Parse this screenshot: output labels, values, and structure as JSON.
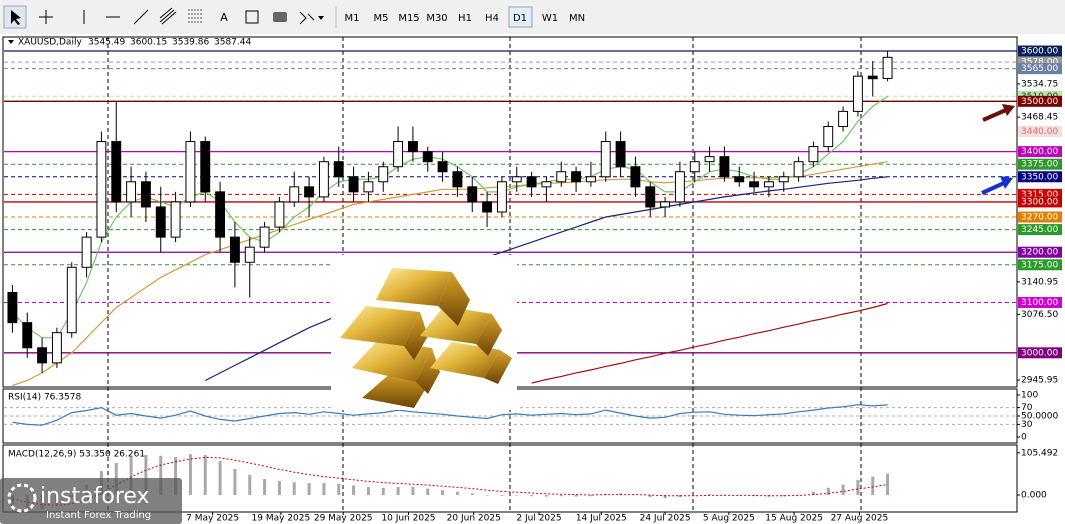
{
  "toolbar": {
    "text_tool": "A",
    "timeframes": [
      "M1",
      "M5",
      "M15",
      "M30",
      "H1",
      "H4",
      "D1",
      "W1",
      "MN"
    ],
    "selected": "D1"
  },
  "watermark": {
    "name": "instaforex",
    "tagline": "Instant Forex Trading"
  },
  "chart_data": [
    {
      "type": "candlestick",
      "title": "XAUUSD,Daily",
      "open": [
        3120,
        3060,
        3010,
        2980,
        3040,
        3170,
        3230,
        3420,
        3300,
        3340,
        3290,
        3230,
        3300,
        3420,
        3320,
        3230,
        3180,
        3210,
        3250,
        3300,
        3330,
        3310,
        3380,
        3350,
        3320,
        3340,
        3370,
        3420,
        3400,
        3380,
        3360,
        3330,
        3300,
        3280,
        3340,
        3350,
        3330,
        3340,
        3360,
        3340,
        3350,
        3420,
        3370,
        3330,
        3290,
        3300,
        3360,
        3380,
        3390,
        3350,
        3340,
        3330,
        3340,
        3350,
        3380,
        3410,
        3450,
        3480,
        3550,
        3545.49
      ],
      "high": [
        3135,
        3080,
        3030,
        3050,
        3180,
        3240,
        3440,
        3500,
        3370,
        3360,
        3330,
        3320,
        3440,
        3430,
        3340,
        3260,
        3230,
        3260,
        3310,
        3360,
        3350,
        3390,
        3410,
        3370,
        3360,
        3380,
        3450,
        3450,
        3410,
        3400,
        3370,
        3350,
        3320,
        3350,
        3370,
        3360,
        3350,
        3380,
        3370,
        3380,
        3440,
        3440,
        3390,
        3340,
        3310,
        3380,
        3400,
        3410,
        3410,
        3370,
        3360,
        3350,
        3360,
        3390,
        3420,
        3460,
        3490,
        3560,
        3580,
        3600.15
      ],
      "low": [
        3040,
        2990,
        2960,
        2970,
        3030,
        3150,
        3220,
        3280,
        3270,
        3260,
        3200,
        3220,
        3290,
        3300,
        3200,
        3130,
        3110,
        3200,
        3240,
        3290,
        3270,
        3300,
        3330,
        3300,
        3300,
        3320,
        3360,
        3380,
        3360,
        3340,
        3310,
        3280,
        3250,
        3270,
        3320,
        3310,
        3300,
        3330,
        3320,
        3330,
        3340,
        3350,
        3310,
        3270,
        3270,
        3290,
        3340,
        3360,
        3340,
        3330,
        3320,
        3310,
        3320,
        3340,
        3370,
        3400,
        3440,
        3470,
        3510,
        3539.86
      ],
      "close": [
        3060,
        3010,
        2980,
        3040,
        3170,
        3230,
        3420,
        3300,
        3340,
        3290,
        3230,
        3300,
        3420,
        3320,
        3230,
        3180,
        3210,
        3250,
        3300,
        3330,
        3310,
        3380,
        3350,
        3320,
        3340,
        3370,
        3420,
        3400,
        3380,
        3360,
        3330,
        3300,
        3280,
        3340,
        3350,
        3330,
        3340,
        3360,
        3340,
        3350,
        3420,
        3370,
        3330,
        3290,
        3300,
        3360,
        3380,
        3390,
        3350,
        3340,
        3330,
        3340,
        3350,
        3380,
        3410,
        3450,
        3480,
        3550,
        3545,
        3587.44
      ],
      "lines": [
        {
          "color": "#6acb5e",
          "values": [
            3080,
            3050,
            3030,
            3030,
            3080,
            3140,
            3220,
            3270,
            3300,
            3310,
            3300,
            3290,
            3310,
            3320,
            3300,
            3260,
            3230,
            3220,
            3240,
            3270,
            3290,
            3320,
            3340,
            3345,
            3345,
            3350,
            3370,
            3385,
            3390,
            3385,
            3370,
            3350,
            3320,
            3320,
            3330,
            3335,
            3340,
            3345,
            3345,
            3350,
            3365,
            3370,
            3365,
            3340,
            3320,
            3320,
            3340,
            3360,
            3365,
            3360,
            3350,
            3345,
            3345,
            3355,
            3370,
            3395,
            3420,
            3460,
            3490,
            3510
          ]
        },
        {
          "color": "#d49a3a",
          "values": [
            2935,
            2945,
            2960,
            2980,
            3000,
            3030,
            3060,
            3090,
            3110,
            3130,
            3150,
            3165,
            3180,
            3195,
            3205,
            3215,
            3225,
            3235,
            3245,
            3255,
            3265,
            3275,
            3285,
            3295,
            3300,
            3305,
            3310,
            3315,
            3320,
            3325,
            3325,
            3325,
            3328,
            3330,
            3332,
            3335,
            3337,
            3338,
            3340,
            3342,
            3344,
            3345,
            3345,
            3340,
            3338,
            3340,
            3342,
            3345,
            3347,
            3348,
            3348,
            3348,
            3349,
            3350,
            3355,
            3360,
            3365,
            3370,
            3375,
            3380
          ]
        },
        {
          "color": "#1a237e",
          "values": [
            null,
            null,
            null,
            null,
            null,
            null,
            null,
            null,
            null,
            null,
            null,
            null,
            null,
            2945,
            2960,
            2975,
            2990,
            3005,
            3020,
            3035,
            3050,
            3062,
            3075,
            3088,
            3100,
            3112,
            3125,
            3138,
            3150,
            3160,
            3170,
            3180,
            3190,
            3200,
            3210,
            3220,
            3230,
            3240,
            3250,
            3260,
            3270,
            3275,
            3280,
            3285,
            3290,
            3295,
            3300,
            3305,
            3310,
            3314,
            3318,
            3322,
            3325,
            3329,
            3333,
            3337,
            3340,
            3343,
            3347,
            3350
          ]
        },
        {
          "color": "#a01010",
          "values": [
            null,
            null,
            null,
            null,
            null,
            null,
            null,
            null,
            null,
            null,
            null,
            null,
            null,
            null,
            null,
            null,
            null,
            null,
            null,
            null,
            null,
            null,
            null,
            null,
            null,
            null,
            null,
            null,
            null,
            null,
            null,
            null,
            null,
            null,
            null,
            2940,
            2947,
            2953,
            2960,
            2966,
            2973,
            2979,
            2986,
            2992,
            2999,
            3005,
            3012,
            3018,
            3025,
            3031,
            3038,
            3044,
            3051,
            3057,
            3064,
            3070,
            3077,
            3083,
            3090,
            3098
          ]
        }
      ],
      "levels": [
        {
          "value": 3600,
          "label": "3600.00",
          "color": "#0a1f5c",
          "text_color": "#ffffff",
          "line": "solid"
        },
        {
          "value": 3578,
          "label": "3578.00",
          "color": "#9a9a9a",
          "text_color": "#ffffff",
          "line": "dashed"
        },
        {
          "value": 3565,
          "label": "3565.00",
          "color": "#6b7fa8",
          "text_color": "#ffffff",
          "line": "dashed"
        },
        {
          "value": 3510,
          "label": "3510.00",
          "color": "#b8e6a8",
          "text_color": "#333333",
          "line": "dashed"
        },
        {
          "value": 3500,
          "label": "3500.00",
          "color": "#7a0000",
          "text_color": "#ffffff",
          "line": "solid"
        },
        {
          "value": 3440,
          "label": "3440.00",
          "color": "#f3dede",
          "text_color": "#e07070",
          "line": "none"
        },
        {
          "value": 3400,
          "label": "3400.00",
          "color": "#c000c0",
          "text_color": "#ffffff",
          "line": "solid"
        },
        {
          "value": 3375,
          "label": "3375.00",
          "color": "#2a9a2a",
          "text_color": "#ffffff",
          "line": "dashed"
        },
        {
          "value": 3350,
          "label": "3350.00",
          "color": "#000080",
          "text_color": "#ffffff",
          "line": "dashed"
        },
        {
          "value": 3315,
          "label": "3315.00",
          "color": "#d00000",
          "text_color": "#ffffff",
          "line": "dashed"
        },
        {
          "value": 3300,
          "label": "3300.00",
          "color": "#c00000",
          "text_color": "#ffffff",
          "line": "solid"
        },
        {
          "value": 3270,
          "label": "3270.00",
          "color": "#e08000",
          "text_color": "#ffffff",
          "line": "dashed"
        },
        {
          "value": 3245,
          "label": "3245.00",
          "color": "#2a9a2a",
          "text_color": "#ffffff",
          "line": "dashed"
        },
        {
          "value": 3200,
          "label": "3200.00",
          "color": "#8000a0",
          "text_color": "#ffffff",
          "line": "solid"
        },
        {
          "value": 3175,
          "label": "3175.00",
          "color": "#2a9a2a",
          "text_color": "#ffffff",
          "line": "dashed"
        },
        {
          "value": 3100,
          "label": "3100.00",
          "color": "#d000d0",
          "text_color": "#ffffff",
          "line": "dashed"
        },
        {
          "value": 3000,
          "label": "3000.00",
          "color": "#800080",
          "text_color": "#ffffff",
          "line": "solid"
        }
      ],
      "ylim": [
        2934,
        3610
      ],
      "yticks": [
        3534.75,
        3468.45,
        3140.95,
        {
          "value": 3076.5,
          "label": "3076.50"
        },
        2945.95
      ],
      "xlim": [
        0,
        60
      ],
      "xticks": [
        {
          "value": 14,
          "label": "7 May 2025"
        },
        {
          "value": 18.6,
          "label": "19 May 2025"
        },
        {
          "value": 22.8,
          "label": "29 May 2025"
        },
        {
          "value": 27.2,
          "label": "10 Jun 2025"
        },
        {
          "value": 31.6,
          "label": "20 Jun 2025"
        },
        {
          "value": 36,
          "label": "2 Jul 2025"
        },
        {
          "value": 40.2,
          "label": "14 Jul 2025"
        },
        {
          "value": 44.5,
          "label": "24 Jul 2025"
        },
        {
          "value": 48.8,
          "label": "5 Aug 2025"
        },
        {
          "value": 53.2,
          "label": "15 Aug 2025"
        },
        {
          "value": 57.6,
          "label": "27 Aug 2025"
        }
      ]
    },
    {
      "type": "line",
      "title": "RSI(14) 76.3578",
      "color": "#3a7bbf",
      "values": [
        35,
        30,
        28,
        40,
        58,
        63,
        70,
        52,
        56,
        50,
        45,
        52,
        62,
        50,
        42,
        38,
        44,
        50,
        56,
        58,
        54,
        60,
        56,
        52,
        55,
        58,
        64,
        60,
        57,
        54,
        50,
        47,
        44,
        53,
        55,
        52,
        54,
        56,
        53,
        55,
        64,
        57,
        50,
        45,
        47,
        56,
        59,
        60,
        54,
        52,
        51,
        53,
        55,
        60,
        64,
        69,
        72,
        77,
        74,
        76.3578
      ],
      "ylim": [
        0,
        100
      ],
      "yticks": [
        100,
        70,
        {
          "value": 50,
          "label": "50.0000"
        },
        30,
        0
      ],
      "grid": true
    },
    {
      "type": "bar",
      "title": "MACD(12,26,9) 53.350 26.261",
      "series": [
        {
          "type": "bar",
          "color": "#a8a8a8",
          "values": [
            -30,
            -38,
            -35,
            -25,
            -5,
            25,
            60,
            80,
            95,
            100,
            98,
            95,
            102,
            100,
            85,
            65,
            50,
            40,
            35,
            32,
            30,
            30,
            28,
            24,
            20,
            18,
            20,
            20,
            16,
            12,
            8,
            4,
            0,
            -2,
            -1,
            -3,
            -4,
            -3,
            -4,
            -3,
            3,
            4,
            1,
            -5,
            -8,
            -5,
            -1,
            2,
            1,
            -1,
            -3,
            -4,
            -3,
            1,
            8,
            18,
            26,
            38,
            46,
            53.35
          ]
        },
        {
          "type": "line",
          "color": "#d00000",
          "values": [
            -10,
            -18,
            -24,
            -26,
            -22,
            -12,
            5,
            25,
            45,
            62,
            75,
            83,
            90,
            94,
            93,
            87,
            80,
            72,
            64,
            57,
            51,
            46,
            42,
            38,
            34,
            31,
            29,
            27,
            25,
            22,
            19,
            16,
            12,
            9,
            7,
            5,
            3,
            2,
            1,
            0,
            1,
            1,
            1,
            0,
            -2,
            -2,
            -2,
            -1,
            -1,
            -1,
            -1,
            -2,
            -2,
            -1,
            1,
            4,
            9,
            15,
            20,
            26.261
          ]
        }
      ],
      "ylim": [
        -40,
        120
      ],
      "yticks": [
        105.492,
        {
          "value": 0,
          "label": "0.000"
        }
      ]
    }
  ]
}
